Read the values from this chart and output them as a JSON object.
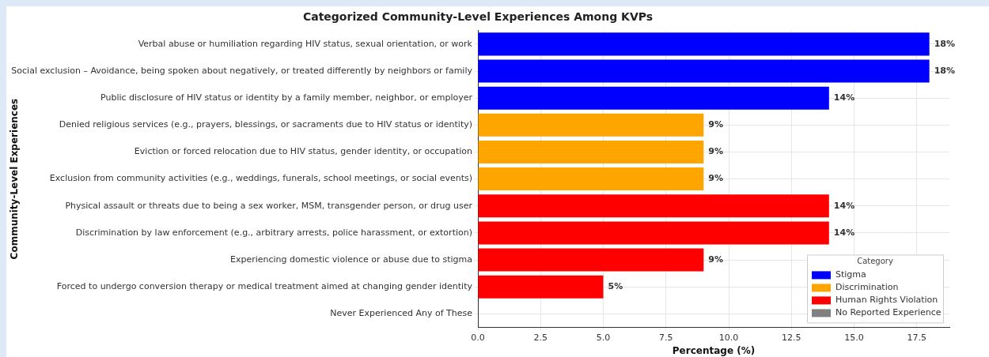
{
  "chart_data": {
    "type": "bar",
    "orientation": "horizontal",
    "stacked": true,
    "title": "Categorized Community-Level Experiences Among KVPs",
    "xlabel": "Percentage (%)",
    "ylabel": "Community-Level Experiences",
    "legend_title": "Category",
    "legend": "bottom right",
    "grid": true,
    "categories": [
      "Verbal abuse or humiliation regarding HIV status, sexual orientation, or work",
      "Social exclusion – Avoidance, being spoken about negatively, or treated differently by neighbors or family",
      "Public disclosure of HIV status or identity by a family member, neighbor, or employer",
      "Denied religious services (e.g., prayers, blessings, or sacraments due to HIV status or identity)",
      "Eviction or forced relocation due to HIV status, gender identity, or occupation",
      "Exclusion from community activities (e.g., weddings, funerals, school meetings, or social events)",
      "Physical assault or threats due to being a sex worker, MSM, transgender person, or drug user",
      "Discrimination by law enforcement (e.g., arbitrary arrests, police harassment, or extortion)",
      "Experiencing domestic violence or abuse due to stigma",
      "Forced to undergo conversion therapy or medical treatment aimed at changing gender identity",
      "Never Experienced Any of These"
    ],
    "series": [
      {
        "name": "Stigma",
        "color": "#0000ff",
        "values": [
          18,
          18,
          14,
          null,
          null,
          null,
          null,
          null,
          null,
          null,
          null
        ],
        "value_labels": [
          "18%",
          "18%",
          "14%",
          null,
          null,
          null,
          null,
          null,
          null,
          null,
          null
        ]
      },
      {
        "name": "Discrimination",
        "color": "#ffa500",
        "values": [
          null,
          null,
          null,
          9,
          9,
          9,
          null,
          null,
          null,
          null,
          null
        ],
        "value_labels": [
          null,
          null,
          null,
          "9%",
          "9%",
          "9%",
          null,
          null,
          null,
          null,
          null
        ]
      },
      {
        "name": "Human Rights Violation",
        "color": "#ff0000",
        "values": [
          null,
          null,
          null,
          null,
          null,
          null,
          14,
          14,
          9,
          5,
          null
        ],
        "value_labels": [
          null,
          null,
          null,
          null,
          null,
          null,
          "14%",
          "14%",
          "9%",
          "5%",
          null
        ]
      },
      {
        "name": "No Reported Experience",
        "color": "#808080",
        "values": [
          null,
          null,
          null,
          null,
          null,
          null,
          null,
          null,
          null,
          null,
          0
        ],
        "value_labels": [
          null,
          null,
          null,
          null,
          null,
          null,
          null,
          null,
          null,
          null,
          null
        ]
      }
    ],
    "xlim": [
      0,
      18.8
    ],
    "xticks": [
      {
        "value": 0,
        "label": "0.0"
      },
      {
        "value": 2.5,
        "label": "2.5"
      },
      {
        "value": 5,
        "label": "5.0"
      },
      {
        "value": 7.5,
        "label": "7.5"
      },
      {
        "value": 10,
        "label": "10.0"
      },
      {
        "value": 12.5,
        "label": "12.5"
      },
      {
        "value": 15,
        "label": "15.0"
      },
      {
        "value": 17.5,
        "label": "17.5"
      }
    ]
  }
}
